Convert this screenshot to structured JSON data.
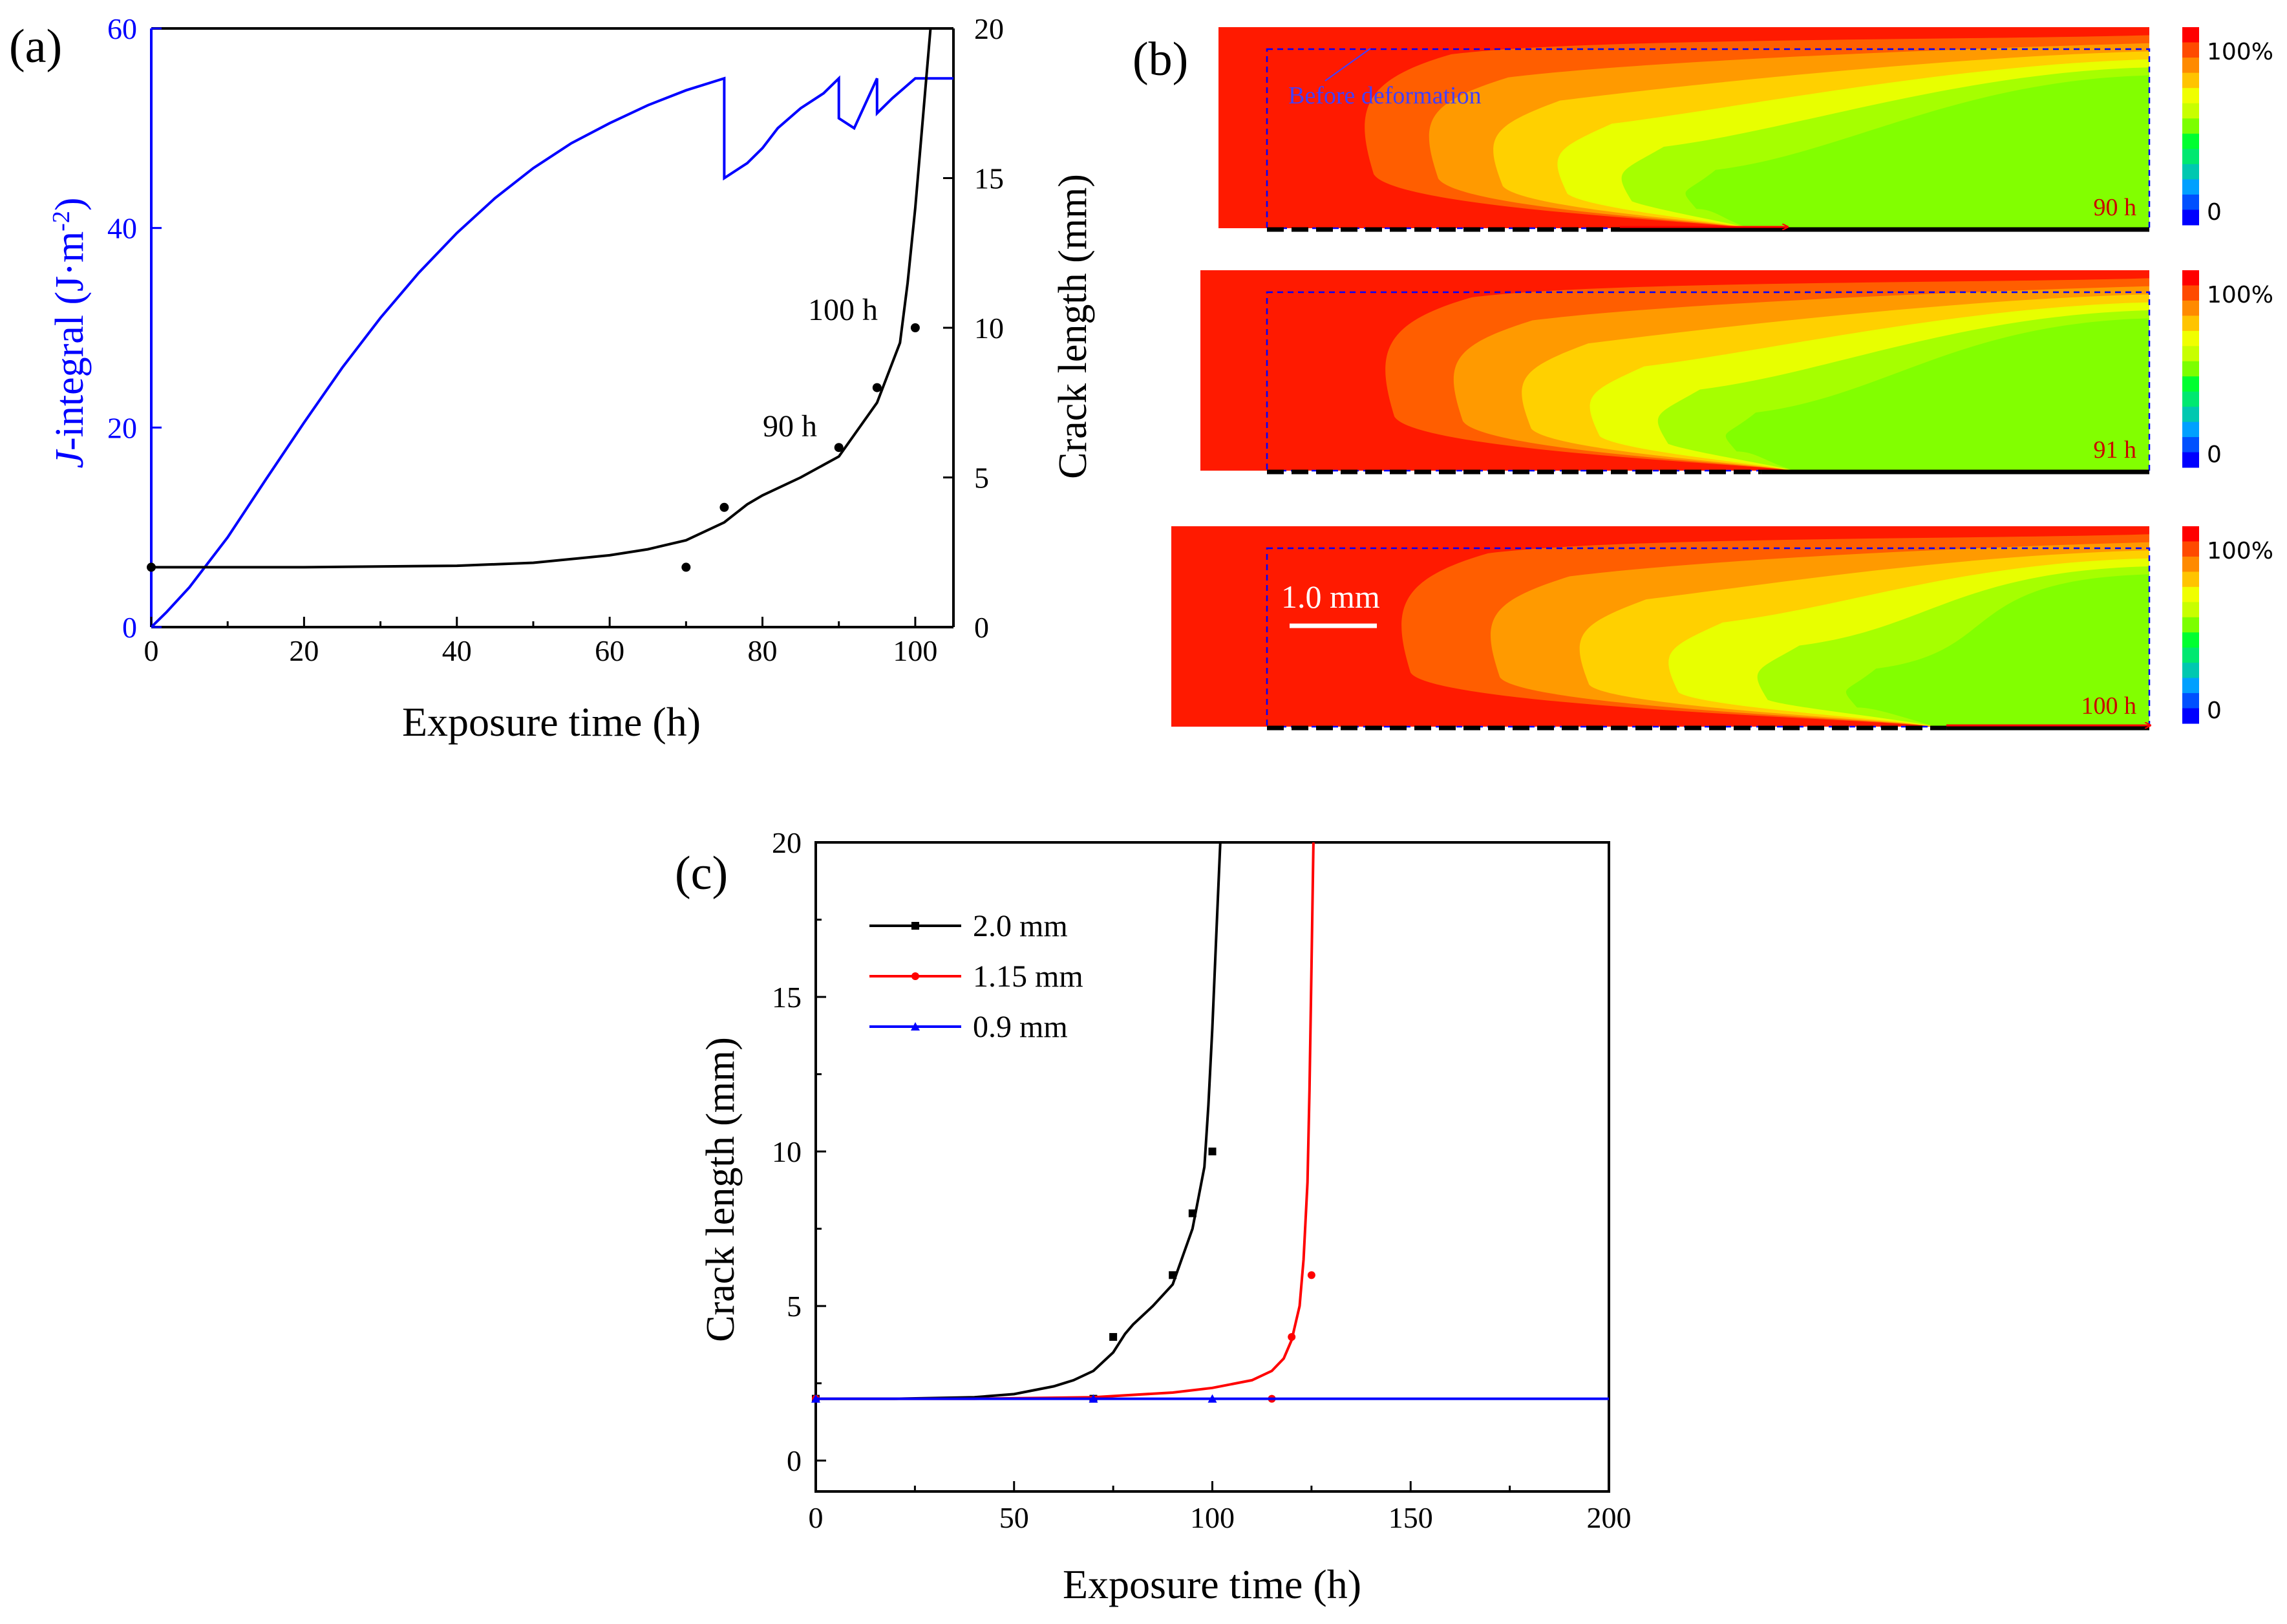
{
  "colors": {
    "axis": "#000000",
    "j_integral": "#0000ff",
    "series_black": "#000000",
    "series_red": "#ff0000",
    "series_blue": "#0000ff",
    "contour_levels": [
      "#ff1a00",
      "#ff5e00",
      "#ff9a00",
      "#ffd000",
      "#e8ff00",
      "#a6ff00",
      "#82ff00"
    ],
    "legend_levels": [
      "#ff0000",
      "#ff4a00",
      "#ff8a00",
      "#ffc400",
      "#f0ff00",
      "#c8ff00",
      "#7cff00",
      "#00ff30",
      "#00e870",
      "#00c8b0",
      "#00a0ff",
      "#0050ff",
      "#0000ff"
    ],
    "annotation": "#4040ff",
    "time_label": "#cc0000"
  },
  "panel_a": {
    "label": "(a)",
    "annotations": {
      "h90": "90 h",
      "h100": "100 h"
    }
  },
  "panel_b": {
    "label": "(b)",
    "before_deformation": "Before deformation",
    "scale_bar": "1.0 mm",
    "maps": [
      {
        "time": "90 h",
        "legend_max": "100%",
        "legend_min": "0",
        "crack_frac": 0.4,
        "tip_frac": 0.56
      },
      {
        "time": "91 h",
        "legend_max": "100%",
        "legend_min": "0",
        "crack_frac": 0.56,
        "tip_frac": 0.61
      },
      {
        "time": "100 h",
        "legend_max": "100%",
        "legend_min": "0",
        "crack_frac": 0.77,
        "tip_frac": 0.77
      }
    ]
  },
  "panel_c": {
    "label": "(c)"
  },
  "chart_data": [
    {
      "type": "line",
      "panel": "a",
      "xlabel": "Exposure time (h)",
      "ylabel_left_italic": "J",
      "ylabel_left_rest": "-integral (J·m",
      "ylabel_left_sup": "-2",
      "ylabel_left_close": ")",
      "ylabel_right": "Crack length (mm)",
      "xlim": [
        0,
        105
      ],
      "ylim_left": [
        0,
        60
      ],
      "ylim_right": [
        0,
        20
      ],
      "x_ticks": [
        "0",
        "20",
        "40",
        "60",
        "80",
        "100"
      ],
      "x_tick_values": [
        0,
        20,
        40,
        60,
        80,
        100
      ],
      "y_left_ticks": [
        "0",
        "20",
        "40",
        "60"
      ],
      "y_left_tick_values": [
        0,
        20,
        40,
        60
      ],
      "y_right_ticks": [
        "0",
        "5",
        "10",
        "15",
        "20"
      ],
      "y_right_tick_values": [
        0,
        5,
        10,
        15,
        20
      ],
      "series": [
        {
          "name": "J-integral",
          "axis": "left",
          "x": [
            0,
            2,
            5,
            10,
            15,
            20,
            25,
            30,
            35,
            40,
            45,
            50,
            55,
            60,
            65,
            70,
            75,
            75,
            78,
            80,
            82,
            85,
            88,
            90,
            90,
            92,
            95,
            95,
            97,
            100,
            105
          ],
          "y": [
            0,
            1.5,
            4,
            9,
            14.8,
            20.5,
            26,
            31,
            35.5,
            39.5,
            43,
            46,
            48.5,
            50.5,
            52.3,
            53.8,
            55,
            45,
            46.5,
            48,
            50,
            52,
            53.5,
            55,
            51,
            50,
            55,
            51.5,
            53,
            55,
            55
          ]
        },
        {
          "name": "Crack length (fit)",
          "axis": "right",
          "x": [
            0,
            20,
            40,
            50,
            60,
            65,
            70,
            75,
            78,
            80,
            85,
            90,
            95,
            98,
            99,
            100,
            101,
            102
          ],
          "y": [
            2,
            2,
            2.05,
            2.15,
            2.4,
            2.6,
            2.9,
            3.5,
            4.1,
            4.4,
            5,
            5.7,
            7.5,
            9.5,
            11.5,
            14,
            17,
            20
          ]
        },
        {
          "name": "Crack length (points)",
          "axis": "right",
          "x": [
            0,
            70,
            75,
            90,
            95,
            100
          ],
          "y": [
            2,
            2,
            4,
            6,
            8,
            10
          ]
        }
      ]
    },
    {
      "type": "line",
      "panel": "c",
      "xlabel": "Exposure time (h)",
      "ylabel": "Crack length (mm)",
      "xlim": [
        0,
        200
      ],
      "ylim": [
        -1,
        20
      ],
      "x_ticks": [
        "0",
        "50",
        "100",
        "150",
        "200"
      ],
      "x_tick_values": [
        0,
        50,
        100,
        150,
        200
      ],
      "y_ticks": [
        "0",
        "5",
        "10",
        "15",
        "20"
      ],
      "y_tick_values": [
        0,
        5,
        10,
        15,
        20
      ],
      "series": [
        {
          "name": "2.0 mm",
          "marker": "square",
          "curve_x": [
            0,
            20,
            40,
            50,
            60,
            65,
            70,
            75,
            78,
            80,
            85,
            90,
            95,
            98,
            99,
            100,
            101,
            102
          ],
          "curve_y": [
            2,
            2,
            2.05,
            2.15,
            2.4,
            2.6,
            2.9,
            3.5,
            4.1,
            4.4,
            5,
            5.7,
            7.5,
            9.5,
            11.5,
            14,
            17,
            20
          ],
          "points_x": [
            0,
            70,
            75,
            90,
            95,
            100
          ],
          "points_y": [
            2,
            2,
            4,
            6,
            8,
            10
          ]
        },
        {
          "name": "1.15 mm",
          "marker": "circle",
          "curve_x": [
            0,
            40,
            70,
            90,
            100,
            110,
            115,
            118,
            120,
            122,
            123,
            124,
            124.5,
            125,
            125.5
          ],
          "curve_y": [
            2,
            2,
            2.05,
            2.2,
            2.35,
            2.6,
            2.9,
            3.3,
            3.9,
            5,
            6.5,
            9,
            12,
            16,
            20
          ],
          "points_x": [
            0,
            115,
            120,
            125
          ],
          "points_y": [
            2,
            2,
            4,
            6
          ]
        },
        {
          "name": "0.9 mm",
          "marker": "triangle",
          "curve_x": [
            0,
            200
          ],
          "curve_y": [
            2,
            2
          ],
          "points_x": [
            0,
            70,
            100
          ],
          "points_y": [
            2,
            2,
            2
          ]
        }
      ]
    }
  ]
}
